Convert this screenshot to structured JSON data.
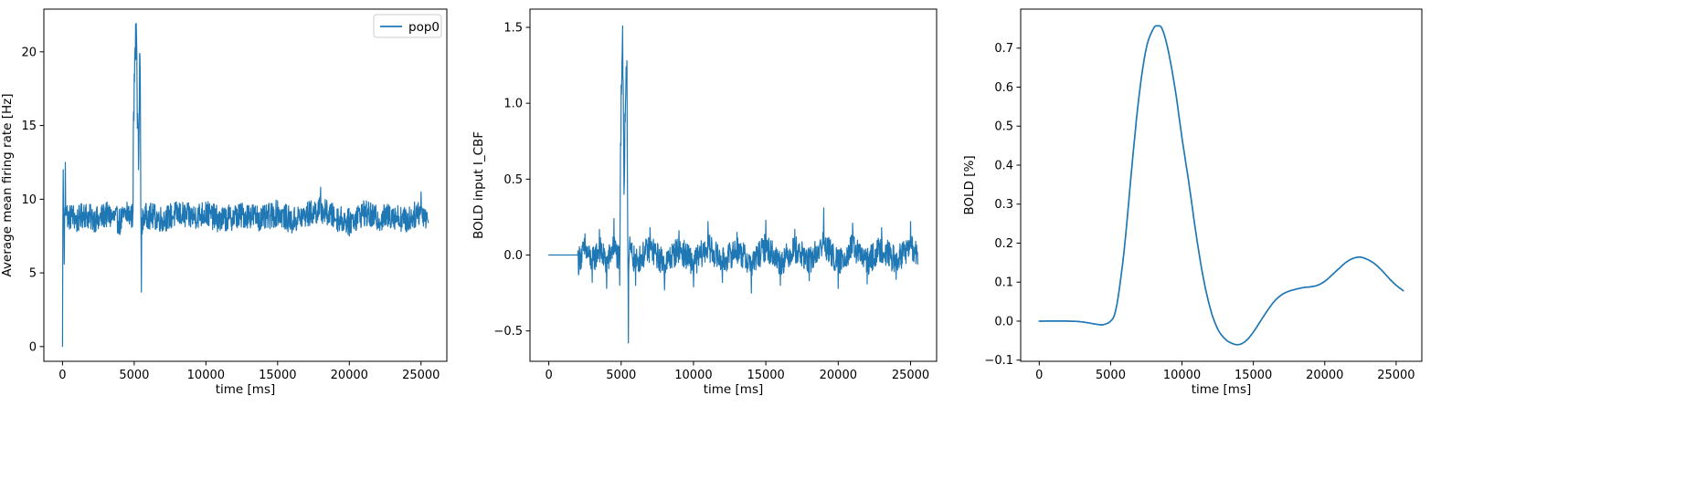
{
  "chart_data": [
    {
      "type": "line",
      "title": "",
      "xlabel": "time [ms]",
      "ylabel": "Average mean firing rate [Hz]",
      "xlim": [
        -1300,
        26800
      ],
      "ylim": [
        -1.0,
        22.9
      ],
      "xticks": [
        0,
        5000,
        10000,
        15000,
        20000,
        25000
      ],
      "yticks": [
        0,
        5,
        10,
        15,
        20
      ],
      "xtick_labels": [
        "0",
        "5000",
        "10000",
        "15000",
        "20000",
        "25000"
      ],
      "ytick_labels": [
        "0",
        "5",
        "10",
        "15",
        "20"
      ],
      "legend": "top-right",
      "series": [
        {
          "name": "pop0",
          "color": "#1f77b4",
          "x": [
            0,
            50,
            120,
            200,
            400,
            700,
            1000,
            1500,
            2000,
            2500,
            3000,
            3500,
            4000,
            4500,
            4900,
            5000,
            5100,
            5200,
            5300,
            5400,
            5500,
            5600,
            6000,
            7000,
            8000,
            9000,
            10000,
            11000,
            12000,
            13000,
            14000,
            15000,
            16000,
            17000,
            18000,
            19000,
            20000,
            21000,
            22000,
            23000,
            24000,
            25000,
            25500
          ],
          "y": [
            0,
            12.0,
            5.6,
            12.5,
            8.3,
            9.3,
            7.8,
            9.6,
            8.5,
            8.0,
            9.4,
            8.7,
            7.6,
            9.8,
            8.9,
            18.5,
            21.9,
            17.5,
            12.0,
            19.8,
            3.7,
            8.6,
            9.2,
            8.1,
            9.6,
            8.8,
            9.8,
            7.9,
            8.9,
            9.4,
            8.2,
            9.9,
            7.7,
            9.3,
            10.8,
            8.6,
            7.5,
            9.9,
            8.2,
            9.3,
            7.8,
            10.5,
            8.4
          ]
        }
      ]
    },
    {
      "type": "line",
      "title": "",
      "xlabel": "time [ms]",
      "ylabel": "BOLD input I_CBF",
      "xlim": [
        -1300,
        26800
      ],
      "ylim": [
        -0.7,
        1.62
      ],
      "xticks": [
        0,
        5000,
        10000,
        15000,
        20000,
        25000
      ],
      "yticks": [
        -0.5,
        0.0,
        0.5,
        1.0,
        1.5
      ],
      "xtick_labels": [
        "0",
        "5000",
        "10000",
        "15000",
        "20000",
        "25000"
      ],
      "ytick_labels": [
        "−0.5",
        "0.0",
        "0.5",
        "1.0",
        "1.5"
      ],
      "series": [
        {
          "name": "",
          "color": "#1f77b4",
          "x": [
            0,
            1000,
            2000,
            2050,
            2500,
            3000,
            3500,
            4000,
            4500,
            4900,
            5000,
            5100,
            5200,
            5300,
            5400,
            5500,
            5600,
            6000,
            7000,
            8000,
            9000,
            10000,
            11000,
            12000,
            13000,
            14000,
            15000,
            16000,
            17000,
            18000,
            19000,
            20000,
            21000,
            22000,
            23000,
            24000,
            25000,
            25500
          ],
          "y": [
            0,
            0,
            0,
            -0.13,
            0.14,
            -0.18,
            0.17,
            -0.22,
            0.24,
            -0.2,
            1.12,
            1.51,
            0.4,
            1.0,
            1.28,
            -0.58,
            0.12,
            -0.2,
            0.18,
            -0.23,
            0.16,
            -0.21,
            0.22,
            -0.18,
            0.15,
            -0.25,
            0.23,
            -0.2,
            0.17,
            -0.17,
            0.31,
            -0.22,
            0.21,
            -0.19,
            0.18,
            -0.16,
            0.22,
            -0.06
          ]
        }
      ]
    },
    {
      "type": "line",
      "title": "",
      "xlabel": "time [ms]",
      "ylabel": "BOLD [%]",
      "xlim": [
        -1300,
        26800
      ],
      "ylim": [
        -0.103,
        0.8
      ],
      "xticks": [
        0,
        5000,
        10000,
        15000,
        20000,
        25000
      ],
      "yticks": [
        -0.1,
        0.0,
        0.1,
        0.2,
        0.3,
        0.4,
        0.5,
        0.6,
        0.7
      ],
      "xtick_labels": [
        "0",
        "5000",
        "10000",
        "15000",
        "20000",
        "25000"
      ],
      "ytick_labels": [
        "−0.1",
        "0.0",
        "0.1",
        "0.2",
        "0.3",
        "0.4",
        "0.5",
        "0.6",
        "0.7"
      ],
      "series": [
        {
          "name": "",
          "color": "#1f77b4",
          "x": [
            0,
            2000,
            3000,
            4000,
            4500,
            5000,
            5300,
            5600,
            6000,
            6500,
            7000,
            7500,
            8000,
            8300,
            8600,
            9000,
            9500,
            10000,
            10500,
            11000,
            11500,
            12000,
            12500,
            13000,
            13500,
            14000,
            14500,
            15000,
            15500,
            16000,
            16500,
            17000,
            17500,
            18000,
            18500,
            19000,
            19500,
            20000,
            20500,
            21000,
            21500,
            22000,
            22500,
            23000,
            23500,
            24000,
            24500,
            25000,
            25500
          ],
          "y": [
            0.0,
            0.0,
            -0.002,
            -0.008,
            -0.009,
            0.0,
            0.02,
            0.08,
            0.2,
            0.4,
            0.58,
            0.7,
            0.75,
            0.757,
            0.75,
            0.7,
            0.6,
            0.47,
            0.35,
            0.22,
            0.11,
            0.03,
            -0.02,
            -0.045,
            -0.057,
            -0.06,
            -0.05,
            -0.028,
            0.0,
            0.028,
            0.052,
            0.068,
            0.077,
            0.082,
            0.086,
            0.088,
            0.092,
            0.102,
            0.118,
            0.135,
            0.151,
            0.161,
            0.164,
            0.158,
            0.147,
            0.13,
            0.11,
            0.092,
            0.078
          ]
        }
      ]
    }
  ]
}
